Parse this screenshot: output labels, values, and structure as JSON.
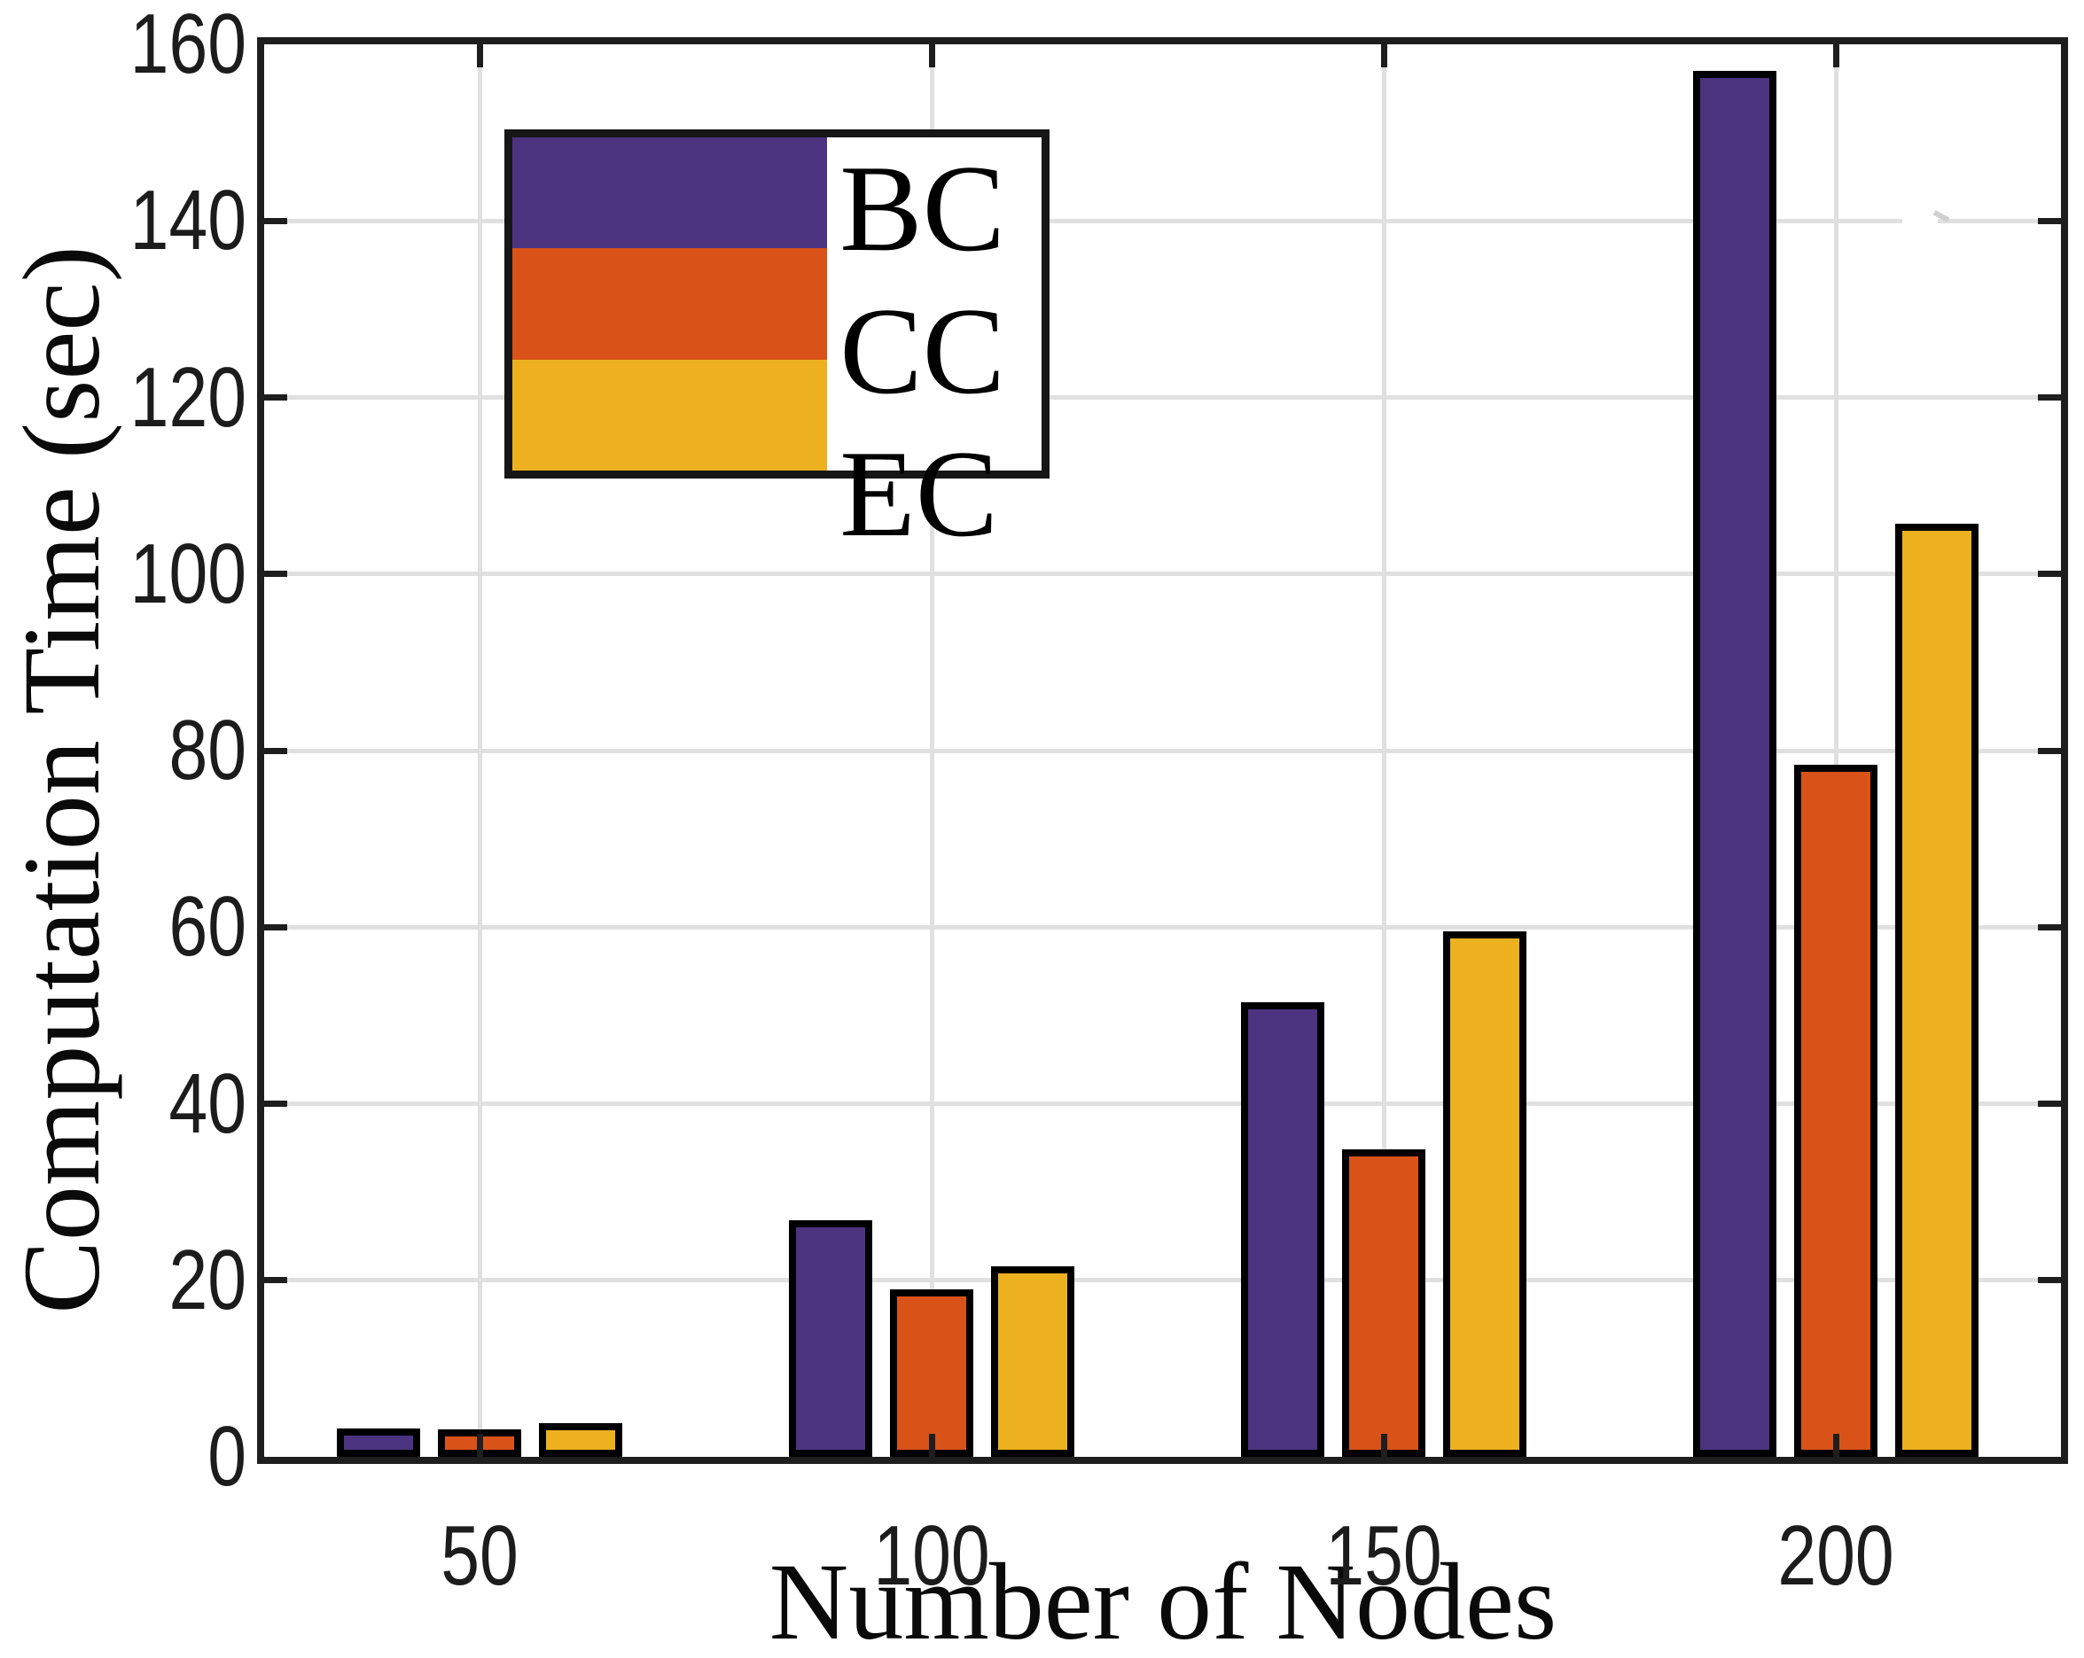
{
  "chart_data": {
    "type": "bar",
    "title": "",
    "xlabel": "Number of Nodes",
    "ylabel": "Computation Time (sec)",
    "categories": [
      "50",
      "100",
      "150",
      "200"
    ],
    "series": [
      {
        "name": "BC",
        "color": "#4B3380",
        "values": [
          3.2,
          26.8,
          51.5,
          157.0
        ]
      },
      {
        "name": "CC",
        "color": "#D95319",
        "values": [
          3.1,
          19.0,
          34.8,
          78.4
        ]
      },
      {
        "name": "EC",
        "color": "#EDB120",
        "values": [
          3.8,
          21.6,
          59.5,
          105.7
        ]
      }
    ],
    "ylim": [
      0,
      160
    ],
    "ytick_step": 20,
    "ytick_labels": [
      "0",
      "20",
      "40",
      "60",
      "80",
      "100",
      "120",
      "140",
      "160"
    ],
    "grid": true,
    "legend_position": "inside-top-left",
    "colors": {
      "axis": "#1e1e1e",
      "grid": "#e0e0e0",
      "bar_edge": "#000000",
      "background": "#ffffff",
      "text": "#1c1c1c"
    }
  }
}
